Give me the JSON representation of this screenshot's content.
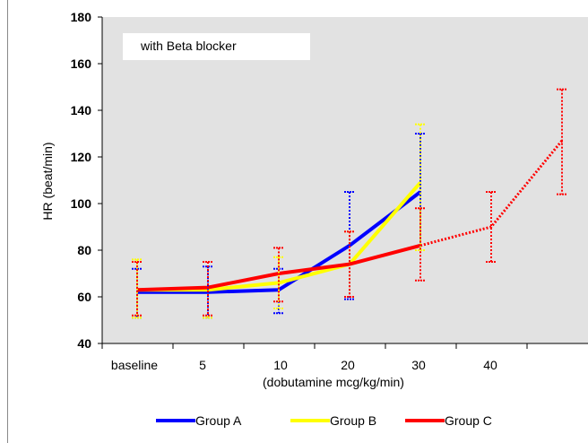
{
  "chart_data": {
    "type": "line",
    "title": "",
    "annotation": "with Beta blocker",
    "ylabel": "HR (beat/min)",
    "xlabel": "(dobutamine mcg/kg/min)",
    "ylim": [
      40,
      180
    ],
    "yticks": [
      40,
      60,
      80,
      100,
      120,
      140,
      160,
      180
    ],
    "categories": [
      "baseline",
      "5",
      "10",
      "20",
      "30",
      "40",
      ""
    ],
    "grid": false,
    "legend_position": "bottom",
    "background": "#e2e2e2",
    "series": [
      {
        "name": "Group A",
        "color": "#0000ff",
        "values": [
          62,
          62,
          63,
          82,
          105,
          null,
          null
        ],
        "err_low": [
          51,
          51,
          53,
          59,
          80,
          null,
          null
        ],
        "err_high": [
          72,
          73,
          72,
          105,
          130,
          null,
          null
        ]
      },
      {
        "name": "Group B",
        "color": "#ffff00",
        "values": [
          63,
          63,
          66,
          74,
          109,
          null,
          null
        ],
        "err_low": [
          51,
          51,
          55,
          60,
          80,
          null,
          null
        ],
        "err_high": [
          76,
          75,
          77,
          88,
          134,
          null,
          null
        ]
      },
      {
        "name": "Group C",
        "color": "#ff0000",
        "values": [
          63,
          64,
          70,
          74,
          82,
          90,
          127
        ],
        "err_low": [
          52,
          52,
          58,
          60,
          67,
          75,
          104
        ],
        "err_high": [
          75,
          75,
          81,
          88,
          98,
          105,
          149
        ],
        "dashed_from_index": 4
      }
    ]
  }
}
